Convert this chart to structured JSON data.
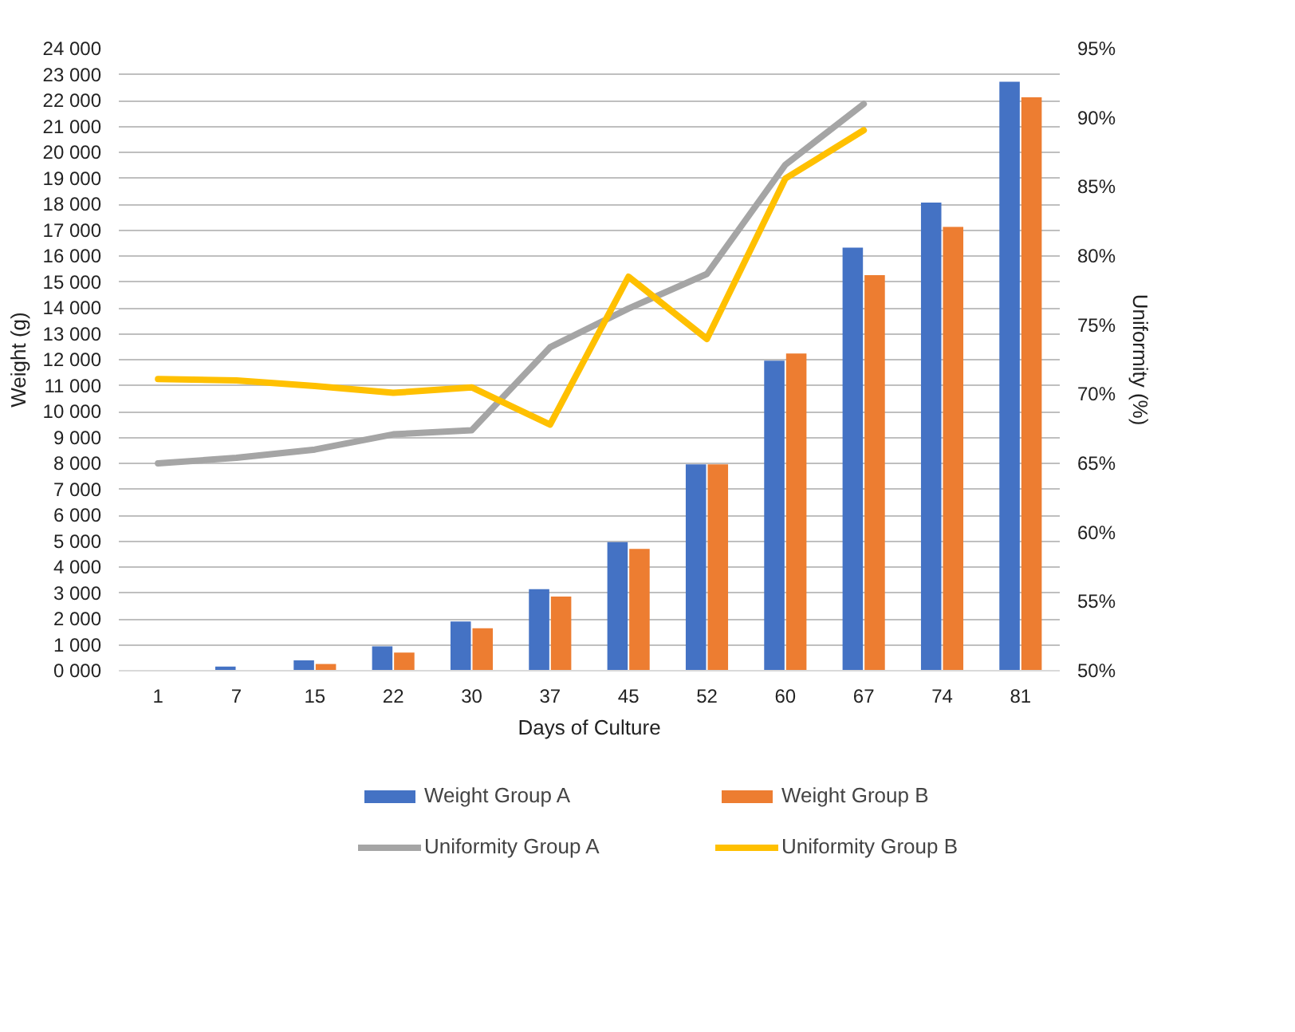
{
  "chart_data": {
    "type": "bar",
    "xlabel": "Days of Culture",
    "ylabel": "Weight (g)",
    "y2label": "Uniformity (%)",
    "categories": [
      "1",
      "7",
      "15",
      "22",
      "30",
      "37",
      "45",
      "52",
      "60",
      "67",
      "74",
      "81"
    ],
    "series": [
      {
        "name": "Weight Group A",
        "color": "#4472c4",
        "values": [
          0,
          160,
          400,
          940,
          1900,
          3150,
          4960,
          7960,
          11960,
          16320,
          18060,
          22720
        ]
      },
      {
        "name": "Weight Group B",
        "color": "#ed7d31",
        "values": [
          0,
          0,
          260,
          700,
          1640,
          2860,
          4700,
          7960,
          12240,
          15260,
          17120,
          22120
        ]
      },
      {
        "name": "Uniformity Group A",
        "type": "line",
        "axis": "y2",
        "color": "#a5a5a5",
        "values": [
          65.0,
          65.4,
          66.0,
          67.1,
          67.4,
          73.4,
          76.2,
          78.7,
          86.6,
          91.0,
          null,
          null
        ]
      },
      {
        "name": "Uniformity Group B",
        "type": "line",
        "axis": "y2",
        "color": "#ffc000",
        "values": [
          71.1,
          71.0,
          70.6,
          70.1,
          70.5,
          67.8,
          78.5,
          74.0,
          85.6,
          89.1,
          null,
          null
        ]
      }
    ],
    "ylim": [
      0,
      24000
    ],
    "yticks": [
      {
        "value": 0,
        "label": "0 000"
      },
      {
        "value": 1000,
        "label": "1 000"
      },
      {
        "value": 2000,
        "label": "2 000"
      },
      {
        "value": 3000,
        "label": "3 000"
      },
      {
        "value": 4000,
        "label": "4 000"
      },
      {
        "value": 5000,
        "label": "5 000"
      },
      {
        "value": 6000,
        "label": "6 000"
      },
      {
        "value": 7000,
        "label": "7 000"
      },
      {
        "value": 8000,
        "label": "8 000"
      },
      {
        "value": 9000,
        "label": "9 000"
      },
      {
        "value": 10000,
        "label": "10 000"
      },
      {
        "value": 11000,
        "label": "11 000"
      },
      {
        "value": 12000,
        "label": "12 000"
      },
      {
        "value": 13000,
        "label": "13 000"
      },
      {
        "value": 14000,
        "label": "14 000"
      },
      {
        "value": 15000,
        "label": "15 000"
      },
      {
        "value": 16000,
        "label": "16 000"
      },
      {
        "value": 17000,
        "label": "17 000"
      },
      {
        "value": 18000,
        "label": "18 000"
      },
      {
        "value": 19000,
        "label": "19 000"
      },
      {
        "value": 20000,
        "label": "20 000"
      },
      {
        "value": 21000,
        "label": "21 000"
      },
      {
        "value": 22000,
        "label": "22 000"
      },
      {
        "value": 23000,
        "label": "23 000"
      },
      {
        "value": 24000,
        "label": "24 000"
      }
    ],
    "y2lim": [
      50,
      95
    ],
    "y2ticks": [
      {
        "value": 50,
        "label": "50%"
      },
      {
        "value": 55,
        "label": "55%"
      },
      {
        "value": 60,
        "label": "60%"
      },
      {
        "value": 65,
        "label": "65%"
      },
      {
        "value": 70,
        "label": "70%"
      },
      {
        "value": 75,
        "label": "75%"
      },
      {
        "value": 80,
        "label": "80%"
      },
      {
        "value": 85,
        "label": "85%"
      },
      {
        "value": 90,
        "label": "90%"
      },
      {
        "value": 95,
        "label": "95%"
      }
    ],
    "grid": "y",
    "legend": "bottom",
    "line_style": "solid"
  }
}
